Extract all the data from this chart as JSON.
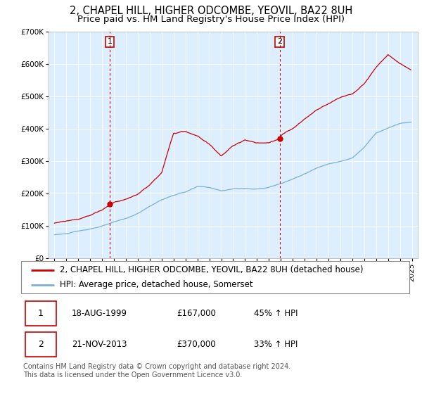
{
  "title": "2, CHAPEL HILL, HIGHER ODCOMBE, YEOVIL, BA22 8UH",
  "subtitle": "Price paid vs. HM Land Registry's House Price Index (HPI)",
  "property_label": "2, CHAPEL HILL, HIGHER ODCOMBE, YEOVIL, BA22 8UH (detached house)",
  "hpi_label": "HPI: Average price, detached house, Somerset",
  "purchase1_date": "18-AUG-1999",
  "purchase1_price": 167000,
  "purchase1_hpi": "45% ↑ HPI",
  "purchase2_date": "21-NOV-2013",
  "purchase2_price": 370000,
  "purchase2_hpi": "33% ↑ HPI",
  "copyright_text": "Contains HM Land Registry data © Crown copyright and database right 2024.\nThis data is licensed under the Open Government Licence v3.0.",
  "property_color": "#cc0000",
  "hpi_color": "#7bafd4",
  "chart_bg_color": "#ddeeff",
  "vline_color": "#cc0000",
  "ylim": [
    0,
    700000
  ],
  "xlim_start": 1994.5,
  "xlim_end": 2025.5,
  "purchase1_x": 1999.63,
  "purchase2_x": 2013.9,
  "title_fontsize": 10.5,
  "subtitle_fontsize": 9.5,
  "tick_fontsize": 7.5,
  "legend_fontsize": 8.5,
  "table_fontsize": 8.5,
  "copyright_fontsize": 7
}
